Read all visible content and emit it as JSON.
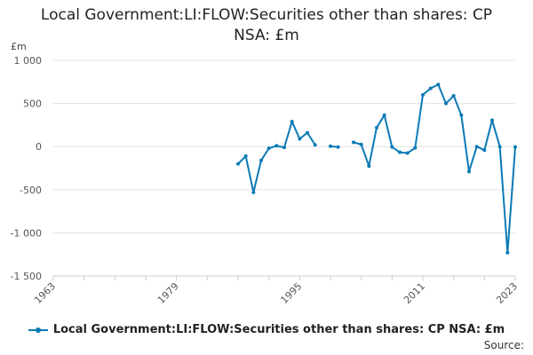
{
  "chart_data": {
    "type": "line",
    "title_lines": [
      "Local Government:LI:FLOW:Securities other than shares: CP",
      "NSA: £m"
    ],
    "ylabel": "£m",
    "ylim": [
      -1500,
      1000
    ],
    "xlim": [
      1963,
      2023
    ],
    "y_ticks": [
      1000,
      500,
      0,
      -500,
      -1000,
      -1500
    ],
    "y_tick_labels": [
      "1 000",
      "500",
      "0",
      "-500",
      "-1 000",
      "-1 500"
    ],
    "x_ticks": [
      1963,
      1979,
      1995,
      2011,
      2023
    ],
    "x_tick_labels": [
      "1963",
      "1979",
      "1995",
      "2011",
      "2023"
    ],
    "grid": true,
    "series": [
      {
        "name": "Local Government:LI:FLOW:Securities other than shares: CP NSA: £m",
        "color": "#0a7ab5",
        "x": [
          1987,
          1988,
          1989,
          1990,
          1991,
          1992,
          1993,
          1994,
          1995,
          1996,
          1997,
          1998,
          1999,
          2000,
          2001,
          2002,
          2003,
          2004,
          2005,
          2006,
          2007,
          2008,
          2009,
          2010,
          2011,
          2012,
          2013,
          2014,
          2015,
          2016,
          2017,
          2018,
          2019,
          2020,
          2021,
          2022,
          2023
        ],
        "values": [
          -200,
          -110,
          -530,
          -160,
          -20,
          10,
          -10,
          290,
          90,
          160,
          20,
          null,
          5,
          -5,
          null,
          50,
          25,
          -225,
          220,
          365,
          -5,
          -65,
          -75,
          -15,
          600,
          675,
          720,
          500,
          590,
          365,
          -290,
          0,
          -40,
          305,
          0,
          -1230,
          -5
        ]
      }
    ],
    "legend": [
      "Local Government:LI:FLOW:Securities other than shares: CP NSA: £m"
    ],
    "legend_position": "bottom",
    "source_label": "Source:"
  }
}
